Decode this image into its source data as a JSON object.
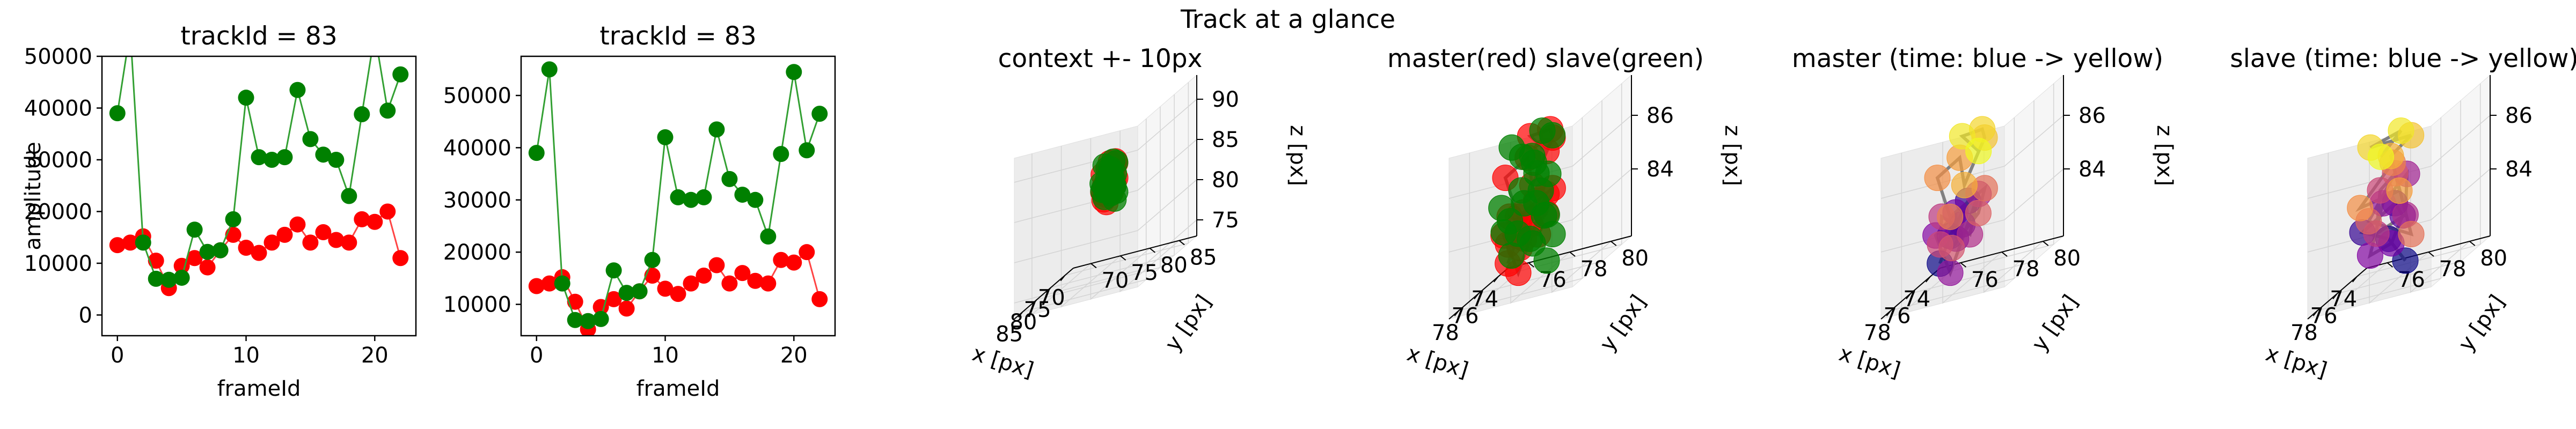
{
  "figure": {
    "suptitle": "Track at a glance"
  },
  "colors": {
    "master": "#ff0000",
    "slave": "#008000",
    "master_line": "#ff4444",
    "slave_line": "#33a033",
    "track_line": "#808080",
    "time_start": "blue",
    "time_end": "yellow"
  },
  "chart_data": [
    {
      "type": "line",
      "title": "trackId = 83",
      "xlabel": "frameId",
      "ylabel": "amplitude",
      "xlim": [
        -1.2,
        23.2
      ],
      "ylim": [
        -4000,
        50000
      ],
      "xticks": [
        "0",
        "10",
        "20"
      ],
      "xtick_values": [
        0,
        10,
        20
      ],
      "yticks": [
        "0",
        "10000",
        "20000",
        "30000",
        "40000",
        "50000"
      ],
      "ytick_values": [
        0,
        10000,
        20000,
        30000,
        40000,
        50000
      ],
      "x": [
        0,
        1,
        2,
        3,
        4,
        5,
        6,
        7,
        8,
        9,
        10,
        11,
        12,
        13,
        14,
        15,
        16,
        17,
        18,
        19,
        20,
        21,
        22
      ],
      "series": [
        {
          "values": [
            13500,
            14000,
            15200,
            10500,
            5200,
            9500,
            11000,
            9200,
            12500,
            15500,
            13000,
            12000,
            14000,
            15500,
            17500,
            14000,
            16000,
            14500,
            14000,
            18500,
            18000,
            20000,
            11000
          ]
        },
        {
          "values": [
            39000,
            55000,
            14000,
            7000,
            6800,
            7200,
            16500,
            12200,
            12500,
            18500,
            42000,
            30500,
            30000,
            30500,
            43500,
            34000,
            31000,
            30000,
            23000,
            38800,
            54500,
            39500,
            46500
          ]
        }
      ]
    },
    {
      "type": "line",
      "title": "trackId = 83",
      "xlabel": "frameId",
      "ylabel": "",
      "xlim": [
        -1.2,
        23.2
      ],
      "ylim": [
        4000,
        57500
      ],
      "xticks": [
        "0",
        "10",
        "20"
      ],
      "xtick_values": [
        0,
        10,
        20
      ],
      "yticks": [
        "10000",
        "20000",
        "30000",
        "40000",
        "50000"
      ],
      "ytick_values": [
        10000,
        20000,
        30000,
        40000,
        50000
      ],
      "x": [
        0,
        1,
        2,
        3,
        4,
        5,
        6,
        7,
        8,
        9,
        10,
        11,
        12,
        13,
        14,
        15,
        16,
        17,
        18,
        19,
        20,
        21,
        22
      ],
      "series": [
        {
          "values": [
            13500,
            14000,
            15200,
            10500,
            5200,
            9500,
            11000,
            9200,
            12500,
            15500,
            13000,
            12000,
            14000,
            15500,
            17500,
            14000,
            16000,
            14500,
            14000,
            18500,
            18000,
            20000,
            11000
          ]
        },
        {
          "values": [
            39000,
            55000,
            14000,
            7000,
            6800,
            7200,
            16500,
            12200,
            12500,
            18500,
            42000,
            30500,
            30000,
            30500,
            43500,
            34000,
            31000,
            30000,
            23000,
            38800,
            54500,
            39500,
            46500
          ]
        }
      ]
    },
    {
      "type": "scatter",
      "title": "context +- 10px",
      "xlabel": "x [px]",
      "ylabel": "y [px]",
      "zlabel": "z [px]",
      "xlim": [
        67,
        88
      ],
      "ylim": [
        67,
        88
      ],
      "zlim": [
        73,
        93
      ],
      "xticks": [
        "70",
        "75",
        "80",
        "85"
      ],
      "xtick_values": [
        70,
        75,
        80,
        85
      ],
      "yticks": [
        "70",
        "75",
        "80",
        "85"
      ],
      "ytick_values": [
        70,
        75,
        80,
        85
      ],
      "zticks": [
        "75",
        "80",
        "85",
        "90"
      ],
      "ztick_values": [
        75,
        80,
        85,
        90
      ],
      "color_mode": "role"
    },
    {
      "type": "scatter",
      "title": "master(red) slave(green)",
      "xlabel": "x [px]",
      "ylabel": "y [px]",
      "zlabel": "z [px]",
      "xlim": [
        73,
        79
      ],
      "ylim": [
        75,
        81
      ],
      "zlim": [
        81.5,
        87.5
      ],
      "xticks": [
        "74",
        "76",
        "78"
      ],
      "xtick_values": [
        74,
        76,
        78
      ],
      "yticks": [
        "76",
        "78",
        "80"
      ],
      "ytick_values": [
        76,
        78,
        80
      ],
      "zticks": [
        "84",
        "86"
      ],
      "ztick_values": [
        84,
        86
      ],
      "color_mode": "role"
    },
    {
      "type": "scatter",
      "title": "master (time: blue -> yellow)",
      "xlabel": "x [px]",
      "ylabel": "y [px]",
      "zlabel": "z [px]",
      "xlim": [
        73,
        79
      ],
      "ylim": [
        75,
        81
      ],
      "zlim": [
        81.5,
        87.5
      ],
      "xticks": [
        "74",
        "76",
        "78"
      ],
      "xtick_values": [
        74,
        76,
        78
      ],
      "yticks": [
        "76",
        "78",
        "80"
      ],
      "ytick_values": [
        76,
        78,
        80
      ],
      "zticks": [
        "84",
        "86"
      ],
      "ztick_values": [
        84,
        86
      ],
      "color_mode": "time",
      "series_role": "master"
    },
    {
      "type": "scatter",
      "title": "slave (time: blue -> yellow)",
      "xlabel": "x [px]",
      "ylabel": "y [px]",
      "zlabel": "z [px]",
      "xlim": [
        73,
        79
      ],
      "ylim": [
        75,
        81
      ],
      "zlim": [
        81.5,
        87.5
      ],
      "xticks": [
        "74",
        "76",
        "78"
      ],
      "xtick_values": [
        74,
        76,
        78
      ],
      "yticks": [
        "76",
        "78",
        "80"
      ],
      "ytick_values": [
        76,
        78,
        80
      ],
      "zticks": [
        "84",
        "86"
      ],
      "ztick_values": [
        84,
        86
      ],
      "color_mode": "time",
      "series_role": "slave"
    }
  ],
  "track3d": {
    "master": [
      [
        77.2,
        77.0,
        82.6
      ],
      [
        76.6,
        77.2,
        83.4
      ],
      [
        76.0,
        77.8,
        84.4
      ],
      [
        77.0,
        78.0,
        83.8
      ],
      [
        76.4,
        77.4,
        83.2
      ],
      [
        75.6,
        77.0,
        84.0
      ],
      [
        76.8,
        76.6,
        83.6
      ],
      [
        77.4,
        77.6,
        82.2
      ],
      [
        76.2,
        78.4,
        84.6
      ],
      [
        75.4,
        77.6,
        83.0
      ],
      [
        76.6,
        76.8,
        84.2
      ],
      [
        77.6,
        77.2,
        83.4
      ],
      [
        76.0,
        77.0,
        82.8
      ],
      [
        75.8,
        78.2,
        83.8
      ],
      [
        76.4,
        78.8,
        84.8
      ],
      [
        77.0,
        77.4,
        84.2
      ],
      [
        76.2,
        76.4,
        85.6
      ],
      [
        75.6,
        77.2,
        86.0
      ],
      [
        76.8,
        78.0,
        85.2
      ],
      [
        76.0,
        78.6,
        86.6
      ],
      [
        75.4,
        78.2,
        86.8
      ],
      [
        76.6,
        77.8,
        87.0
      ],
      [
        76.2,
        78.4,
        86.2
      ]
    ],
    "slave": [
      [
        76.6,
        78.6,
        82.2
      ],
      [
        75.8,
        77.4,
        83.0
      ],
      [
        77.2,
        76.8,
        83.8
      ],
      [
        76.4,
        78.0,
        84.4
      ],
      [
        75.2,
        77.8,
        83.6
      ],
      [
        77.6,
        78.4,
        83.2
      ],
      [
        76.0,
        76.6,
        82.6
      ],
      [
        76.8,
        77.6,
        84.6
      ],
      [
        75.6,
        78.2,
        85.2
      ],
      [
        77.0,
        78.8,
        84.0
      ],
      [
        76.2,
        77.0,
        83.4
      ],
      [
        75.4,
        76.8,
        84.8
      ],
      [
        76.8,
        78.2,
        85.6
      ],
      [
        77.4,
        77.2,
        84.2
      ],
      [
        76.0,
        78.6,
        83.0
      ],
      [
        75.8,
        77.6,
        85.8
      ],
      [
        76.6,
        76.4,
        84.6
      ],
      [
        77.2,
        78.6,
        85.0
      ],
      [
        76.4,
        77.8,
        86.2
      ],
      [
        75.6,
        78.4,
        86.6
      ],
      [
        76.8,
        77.0,
        86.8
      ],
      [
        76.2,
        78.2,
        87.0
      ],
      [
        77.0,
        77.6,
        86.4
      ]
    ]
  }
}
